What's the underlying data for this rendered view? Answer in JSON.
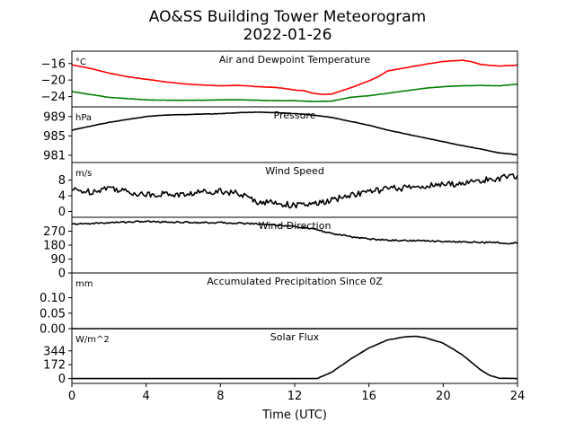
{
  "chart_data": {
    "type": "line",
    "title": "AO&SS Building Tower Meteorogram",
    "subtitle": "2022-01-26",
    "xlabel": "Time (UTC)",
    "xlim": [
      0,
      24
    ],
    "xticks": [
      0,
      4,
      8,
      12,
      16,
      20,
      24
    ],
    "panels": [
      {
        "id": "temp",
        "title": "Air and Dewpoint Temperature",
        "unit": "°C",
        "ylim": [
          -26.5,
          -13
        ],
        "yticks": [
          -16,
          -20,
          -24
        ],
        "ytick_labels": [
          "−16",
          "−20",
          "−24"
        ],
        "series": [
          {
            "name": "",
            "color": "#ff0000",
            "x": [
              0,
              1,
              2,
              3,
              4,
              5,
              6,
              7,
              8,
              9,
              10,
              11,
              12,
              12.5,
              13,
              13.5,
              14,
              15,
              16,
              16.5,
              17,
              18,
              19,
              20,
              21,
              21.5,
              22,
              23,
              24
            ],
            "y": [
              -16.3,
              -17.2,
              -18.3,
              -19.2,
              -19.8,
              -20.4,
              -20.9,
              -21.2,
              -21.4,
              -21.3,
              -21.6,
              -21.8,
              -22.4,
              -22.6,
              -23.2,
              -23.5,
              -23.4,
              -21.9,
              -20.2,
              -19.2,
              -17.8,
              -17.0,
              -16.2,
              -15.5,
              -15.2,
              -15.5,
              -16.2,
              -16.6,
              -16.4
            ]
          },
          {
            "name": "",
            "color": "#008000",
            "x": [
              0,
              1,
              2,
              3,
              4,
              5,
              6,
              7,
              8,
              9,
              10,
              11,
              12,
              13,
              14,
              15,
              16,
              17,
              18,
              19,
              20,
              21,
              22,
              23,
              24
            ],
            "y": [
              -22.8,
              -23.5,
              -24.2,
              -24.5,
              -24.8,
              -24.9,
              -24.9,
              -24.9,
              -24.8,
              -24.8,
              -24.9,
              -25.0,
              -25.0,
              -25.2,
              -25.1,
              -24.2,
              -23.8,
              -23.2,
              -22.6,
              -22.0,
              -21.6,
              -21.4,
              -21.3,
              -21.4,
              -21.0
            ]
          }
        ]
      },
      {
        "id": "pressure",
        "title": "Pressure",
        "unit": "hPa",
        "ylim": [
          979.5,
          991
        ],
        "yticks": [
          989,
          985,
          981
        ],
        "ytick_labels": [
          "989",
          "985",
          "981"
        ],
        "series": [
          {
            "name": "",
            "color": "#000000",
            "x": [
              0,
              1,
              2,
              3,
              4,
              5,
              6,
              7,
              8,
              9,
              10,
              11,
              12,
              13,
              14,
              15,
              16,
              17,
              18,
              19,
              20,
              21,
              22,
              23,
              24
            ],
            "y": [
              986.2,
              987.0,
              987.8,
              988.4,
              989.0,
              989.3,
              989.4,
              989.5,
              989.6,
              989.8,
              989.9,
              989.8,
              989.6,
              989.3,
              988.8,
              988.0,
              987.2,
              986.2,
              985.4,
              984.6,
              983.8,
              983.0,
              982.3,
              981.5,
              981.1
            ]
          }
        ]
      },
      {
        "id": "wind",
        "title": "Wind Speed",
        "unit": "m/s",
        "ylim": [
          -1.5,
          12.5
        ],
        "yticks": [
          8,
          4,
          0
        ],
        "ytick_labels": [
          "8",
          "4",
          "0"
        ],
        "series": [
          {
            "name": "",
            "color": "#000000",
            "x": [
              0,
              1,
              2,
              3,
              4,
              5,
              6,
              7,
              8,
              9,
              10,
              11,
              12,
              13,
              14,
              15,
              16,
              17,
              18,
              19,
              20,
              21,
              22,
              23,
              24
            ],
            "y": [
              5.5,
              5.0,
              6.2,
              5.0,
              4.3,
              4.5,
              4.2,
              5.0,
              5.3,
              4.5,
              2.5,
              2.2,
              1.5,
              1.8,
              2.8,
              4.2,
              5.0,
              5.8,
              6.0,
              6.5,
              6.8,
              7.2,
              7.8,
              8.5,
              9.0
            ]
          }
        ]
      },
      {
        "id": "direction",
        "title": "Wind Direction",
        "unit": "",
        "ylim": [
          0,
          360
        ],
        "yticks": [
          270,
          180,
          90,
          0
        ],
        "ytick_labels": [
          "270",
          "180",
          "90",
          "0"
        ],
        "series": [
          {
            "name": "",
            "color": "#000000",
            "x": [
              0,
              1,
              2,
              3,
              4,
              5,
              6,
              7,
              8,
              9,
              10,
              11,
              12,
              13,
              14,
              15,
              16,
              17,
              18,
              19,
              20,
              21,
              22,
              23,
              24
            ],
            "y": [
              315,
              320,
              325,
              330,
              333,
              330,
              328,
              326,
              325,
              322,
              318,
              310,
              300,
              285,
              255,
              235,
              220,
              212,
              210,
              208,
              205,
              200,
              198,
              195,
              192
            ]
          }
        ]
      },
      {
        "id": "precip",
        "title": "Accumulated Precipitation Since 0Z",
        "unit": "mm",
        "ylim": [
          0,
          0.18
        ],
        "yticks": [
          0.1,
          0.05,
          0.0
        ],
        "ytick_labels": [
          "0.10",
          "0.05",
          "0.00"
        ],
        "series": [
          {
            "name": "",
            "color": "#000000",
            "x": [
              0,
              24
            ],
            "y": [
              0,
              0
            ]
          }
        ]
      },
      {
        "id": "solar",
        "title": "Solar Flux",
        "unit": "W/m^2",
        "ylim": [
          -60,
          620
        ],
        "yticks": [
          344,
          172,
          0
        ],
        "ytick_labels": [
          "344",
          "172",
          "0"
        ],
        "series": [
          {
            "name": "",
            "color": "#000000",
            "x": [
              0,
              13.2,
              14,
              15,
              16,
              17,
              18,
              18.5,
              19,
              20,
              21,
              22,
              22.5,
              23,
              24
            ],
            "y": [
              0,
              0,
              80,
              240,
              380,
              480,
              520,
              525,
              510,
              440,
              300,
              110,
              40,
              5,
              0
            ]
          }
        ]
      }
    ]
  }
}
